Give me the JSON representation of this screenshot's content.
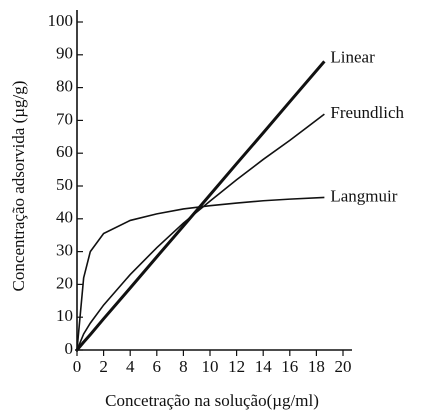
{
  "chart_data": {
    "type": "line",
    "xlabel": "Concetração na solução(µg/ml)",
    "ylabel": "Concentração adsorvida (µg/g)",
    "x": [
      0,
      0.5,
      1,
      2,
      4,
      6,
      8,
      10,
      12,
      14,
      16,
      18.6
    ],
    "series": [
      {
        "name": "Linear",
        "color": "#111111",
        "width": 3,
        "values": [
          0,
          2.4,
          4.7,
          9.5,
          18.9,
          28.4,
          37.8,
          47.3,
          56.8,
          66.2,
          75.7,
          88
        ]
      },
      {
        "name": "Freundlich",
        "color": "#111111",
        "width": 1.6,
        "values": [
          0,
          4.9,
          8.2,
          13.7,
          23.0,
          31.2,
          38.7,
          45.4,
          51.9,
          58.1,
          63.9,
          71.9
        ]
      },
      {
        "name": "Langmuir",
        "color": "#111111",
        "width": 1.6,
        "values": [
          0,
          22,
          30,
          35.5,
          39.5,
          41.5,
          43,
          44,
          44.8,
          45.5,
          46,
          46.5
        ]
      }
    ],
    "xlim": [
      0,
      20
    ],
    "xticks": [
      0,
      2,
      4,
      6,
      8,
      10,
      12,
      14,
      16,
      18,
      20
    ],
    "ylim": [
      0,
      100
    ],
    "yticks": [
      0,
      10,
      20,
      30,
      40,
      50,
      60,
      70,
      80,
      90,
      100
    ],
    "grid": false
  }
}
